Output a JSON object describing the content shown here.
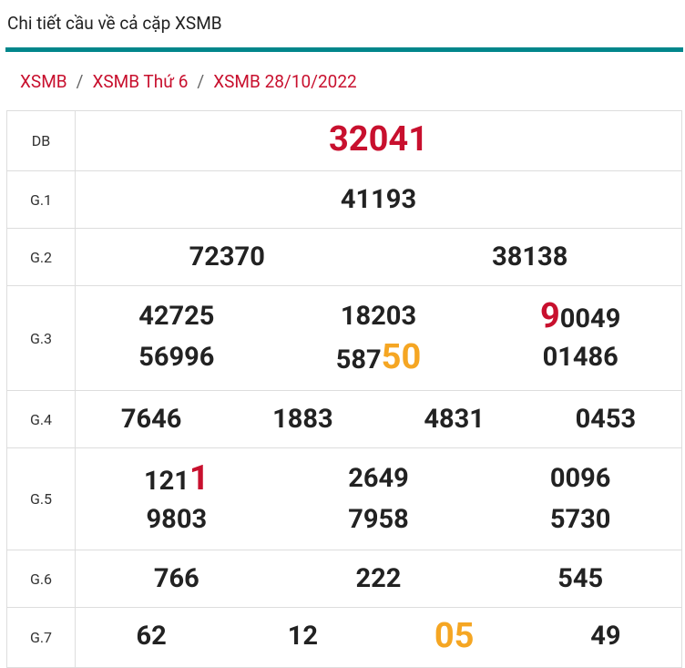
{
  "header": {
    "title": "Chi tiết cầu về cả cặp XSMB"
  },
  "breadcrumb": {
    "items": [
      "XSMB",
      "XSMB Thứ 6",
      "XSMB 28/10/2022"
    ],
    "separator": "/"
  },
  "table": {
    "rows": [
      {
        "label": "DB",
        "numbers": [
          {
            "parts": [
              {
                "text": "32041",
                "color": "#c8102e"
              }
            ]
          }
        ]
      },
      {
        "label": "G.1",
        "numbers": [
          "41193"
        ]
      },
      {
        "label": "G.2",
        "numbers": [
          "72370",
          "38138"
        ]
      },
      {
        "label": "G.3",
        "numbers": [
          "42725",
          "18203",
          {
            "parts": [
              {
                "text": "9",
                "color": "#c8102e"
              },
              {
                "text": "0049"
              }
            ]
          },
          "56996",
          {
            "parts": [
              {
                "text": "587"
              },
              {
                "text": "50",
                "color": "#f5a623"
              }
            ]
          },
          "01486"
        ]
      },
      {
        "label": "G.4",
        "numbers": [
          "7646",
          "1883",
          "4831",
          "0453"
        ]
      },
      {
        "label": "G.5",
        "numbers": [
          {
            "parts": [
              {
                "text": "121"
              },
              {
                "text": "1",
                "color": "#c8102e"
              }
            ]
          },
          "2649",
          "0096",
          "9803",
          "7958",
          "5730"
        ]
      },
      {
        "label": "G.6",
        "numbers": [
          "766",
          "222",
          "545"
        ]
      },
      {
        "label": "G.7",
        "numbers": [
          "62",
          "12",
          {
            "parts": [
              {
                "text": "05",
                "color": "#f5a623"
              }
            ]
          },
          "49"
        ]
      }
    ]
  }
}
